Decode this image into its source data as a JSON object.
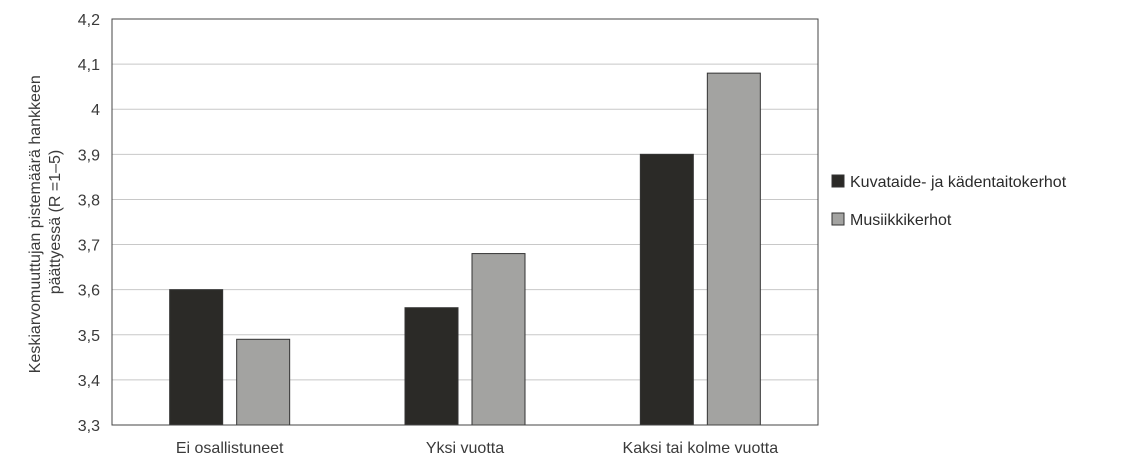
{
  "chart_data": {
    "type": "bar",
    "categories": [
      "Ei osallistuneet",
      "Yksi vuotta",
      "Kaksi tai kolme vuotta"
    ],
    "series": [
      {
        "name": "Kuvataide- ja kädentaitokerhot",
        "values": [
          3.6,
          3.56,
          3.9
        ],
        "color": "#2b2a27"
      },
      {
        "name": "Musiikkikerhot",
        "values": [
          3.49,
          3.68,
          4.08
        ],
        "color": "#a3a3a1"
      }
    ],
    "ylabel_lines": [
      "Keskiarvomuuttujan pistemäärä hankkeen",
      "päättyessä (R =1–5)"
    ],
    "ylim": [
      3.3,
      4.2
    ],
    "yticks": [
      3.3,
      3.4,
      3.5,
      3.6,
      3.7,
      3.8,
      3.9,
      4,
      4.1,
      4.2
    ],
    "ytick_labels": [
      "3,3",
      "3,4",
      "3,5",
      "3,6",
      "3,7",
      "3,8",
      "3,9",
      "4",
      "4,1",
      "4,2"
    ],
    "grid": true,
    "legend": "right"
  }
}
